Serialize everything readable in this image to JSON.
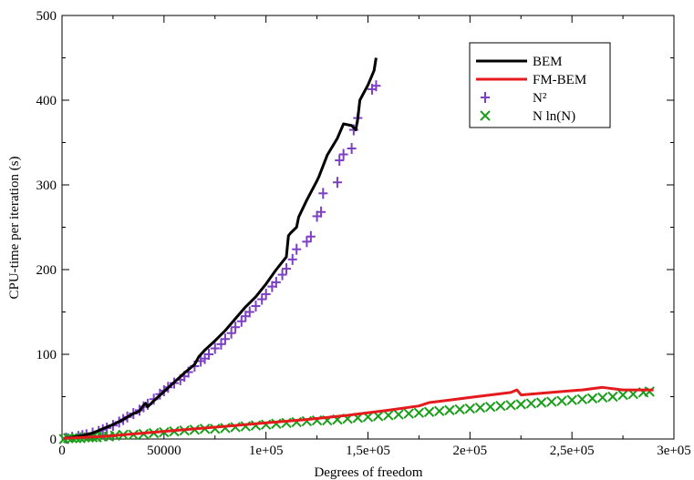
{
  "chart_data": {
    "type": "scatter",
    "xlabel": "Degrees of freedom",
    "ylabel": "CPU-time per iteration (s)",
    "xlim": [
      0,
      300000
    ],
    "ylim": [
      0,
      500
    ],
    "x_ticks": [
      0,
      50000,
      100000,
      150000,
      200000,
      250000,
      300000
    ],
    "x_tick_labels": [
      "0",
      "50000",
      "1e+05",
      "1,5e+05",
      "2e+05",
      "2,5e+05",
      "3e+05"
    ],
    "y_ticks": [
      0,
      100,
      200,
      300,
      400,
      500
    ],
    "y_tick_labels": [
      "0",
      "100",
      "200",
      "300",
      "400",
      "500"
    ],
    "grid": false,
    "legend_position": "top-right",
    "series": [
      {
        "name": "BEM",
        "kind": "line",
        "color": "#000000",
        "x": [
          1000,
          5000,
          10000,
          15000,
          20000,
          25000,
          30000,
          35000,
          38000,
          40000,
          41000,
          42000,
          45000,
          50000,
          55000,
          60000,
          65000,
          67000,
          70000,
          75000,
          80000,
          85000,
          90000,
          95000,
          100000,
          105000,
          110000,
          111000,
          112000,
          115000,
          116000,
          120000,
          125000,
          126000,
          130000,
          135000,
          138000,
          142000,
          144000,
          145000,
          146000,
          150000,
          153000,
          154000
        ],
        "y": [
          1,
          2,
          4,
          7,
          12,
          17,
          23,
          30,
          33,
          40,
          42,
          38,
          45,
          56,
          67,
          78,
          88,
          97,
          105,
          116,
          128,
          142,
          156,
          168,
          183,
          200,
          215,
          240,
          243,
          250,
          262,
          282,
          305,
          310,
          335,
          355,
          372,
          370,
          365,
          378,
          400,
          418,
          435,
          450
        ]
      },
      {
        "name": "FM-BEM",
        "kind": "line",
        "color": "#e41a1c",
        "x": [
          1000,
          20000,
          40000,
          60000,
          80000,
          100000,
          120000,
          140000,
          160000,
          175000,
          180000,
          190000,
          200000,
          210000,
          220000,
          223000,
          225000,
          235000,
          245000,
          255000,
          265000,
          268000,
          275000,
          290000
        ],
        "y": [
          1,
          3,
          7,
          11,
          15,
          19,
          23,
          28,
          34,
          39,
          43,
          46,
          49,
          52,
          55,
          58,
          52,
          54,
          56,
          58,
          61,
          60,
          58,
          58
        ]
      },
      {
        "name": "N²",
        "kind": "marker",
        "marker": "plus",
        "color": "#7d3fc4",
        "x": [
          2000,
          5000,
          8000,
          10000,
          12000,
          15000,
          18000,
          20000,
          22000,
          25000,
          28000,
          30000,
          32000,
          35000,
          38000,
          40000,
          42000,
          45000,
          48000,
          50000,
          52000,
          55000,
          58000,
          60000,
          62000,
          65000,
          68000,
          70000,
          72000,
          75000,
          78000,
          80000,
          83000,
          85000,
          88000,
          90000,
          92000,
          95000,
          98000,
          100000,
          103000,
          105000,
          108000,
          110000,
          113000,
          115000,
          120000,
          122000,
          125000,
          127000,
          128000,
          135000,
          136000,
          138000,
          142000,
          143000,
          145000,
          152000,
          154000
        ],
        "y": [
          1,
          2,
          3,
          4,
          5,
          7,
          9,
          11,
          13,
          16,
          20,
          23,
          26,
          30,
          34,
          38,
          41,
          47,
          53,
          57,
          61,
          66,
          70,
          74,
          79,
          86,
          92,
          95,
          100,
          107,
          112,
          118,
          125,
          132,
          139,
          145,
          150,
          157,
          165,
          171,
          180,
          185,
          194,
          201,
          212,
          224,
          233,
          239,
          263,
          268,
          290,
          303,
          329,
          336,
          343,
          365,
          379,
          413,
          417
        ]
      },
      {
        "name": "N ln(N)",
        "kind": "marker",
        "marker": "cross",
        "color": "#1a9e1a",
        "x": [
          1000,
          3000,
          5000,
          7000,
          9000,
          11000,
          13000,
          15000,
          17000,
          20000,
          23000,
          26000,
          30000,
          35000,
          40000,
          45000,
          50000,
          55000,
          60000,
          65000,
          70000,
          75000,
          80000,
          85000,
          90000,
          95000,
          100000,
          105000,
          110000,
          115000,
          120000,
          125000,
          130000,
          135000,
          140000,
          145000,
          150000,
          155000,
          160000,
          165000,
          170000,
          175000,
          180000,
          185000,
          190000,
          195000,
          200000,
          205000,
          210000,
          215000,
          220000,
          225000,
          230000,
          235000,
          240000,
          245000,
          250000,
          255000,
          260000,
          265000,
          270000,
          275000,
          280000,
          285000,
          288000
        ],
        "y": [
          0,
          1,
          1,
          1,
          1,
          2,
          2,
          2,
          2,
          3,
          3,
          4,
          5,
          5,
          6,
          7,
          8,
          9,
          10,
          11,
          12,
          12,
          13,
          14,
          15,
          16,
          17,
          18,
          19,
          20,
          21,
          22,
          22,
          23,
          24,
          25,
          26,
          27,
          28,
          29,
          30,
          31,
          32,
          33,
          34,
          35,
          36,
          37,
          38,
          39,
          40,
          41,
          42,
          43,
          44,
          45,
          46,
          47,
          48,
          49,
          50,
          52,
          53,
          55,
          56
        ]
      }
    ]
  }
}
